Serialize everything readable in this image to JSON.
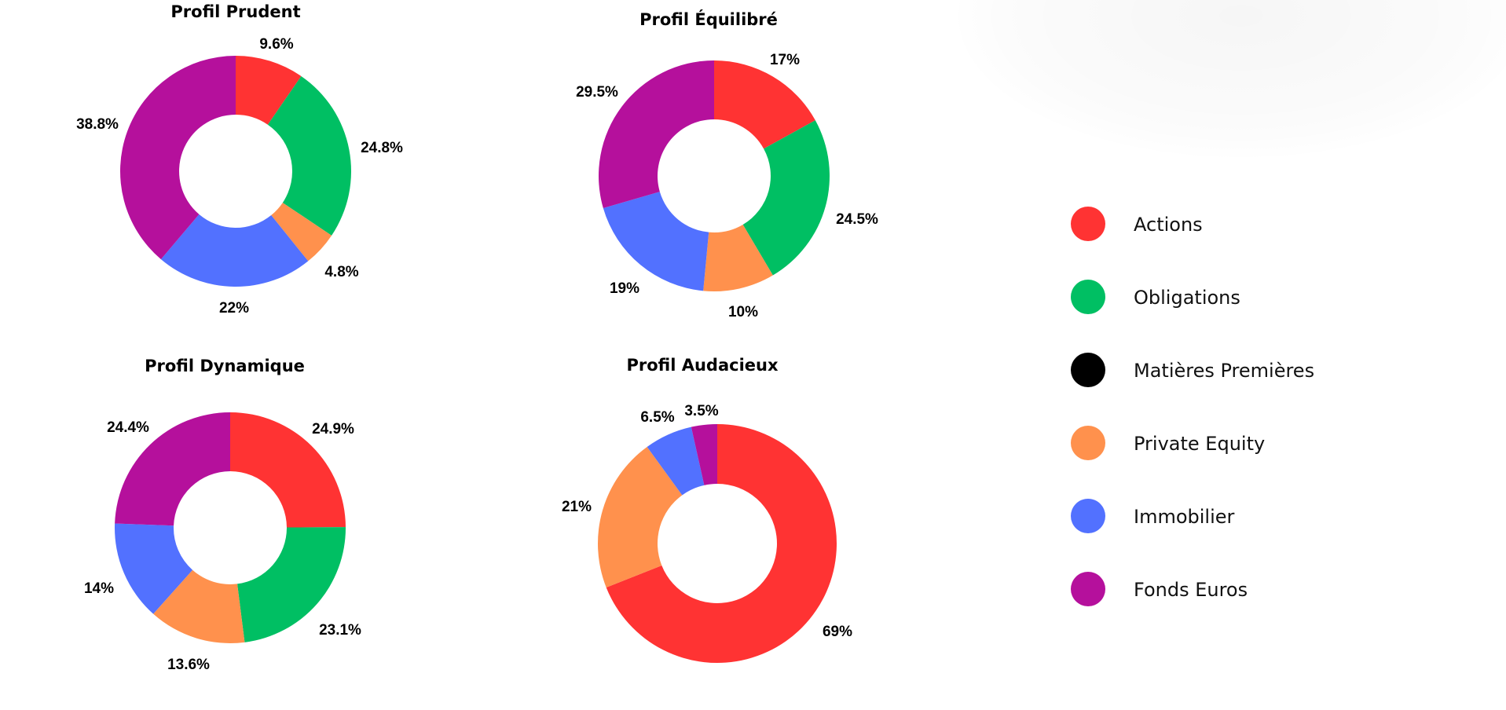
{
  "chart_data": [
    {
      "type": "pie",
      "title": "Profil Prudent",
      "slices": [
        {
          "category": "Actions",
          "value": 9.6,
          "label": "9.6%"
        },
        {
          "category": "Obligations",
          "value": 24.8,
          "label": "24.8%"
        },
        {
          "category": "Private Equity",
          "value": 4.8,
          "label": "4.8%"
        },
        {
          "category": "Immobilier",
          "value": 22,
          "label": "22%"
        },
        {
          "category": "Fonds Euros",
          "value": 38.8,
          "label": "38.8%"
        }
      ]
    },
    {
      "type": "pie",
      "title": "Profil Équilibré",
      "slices": [
        {
          "category": "Actions",
          "value": 17,
          "label": "17%"
        },
        {
          "category": "Obligations",
          "value": 24.5,
          "label": "24.5%"
        },
        {
          "category": "Private Equity",
          "value": 10,
          "label": "10%"
        },
        {
          "category": "Immobilier",
          "value": 19,
          "label": "19%"
        },
        {
          "category": "Fonds Euros",
          "value": 29.5,
          "label": "29.5%"
        }
      ]
    },
    {
      "type": "pie",
      "title": "Profil Dynamique",
      "slices": [
        {
          "category": "Actions",
          "value": 24.9,
          "label": "24.9%"
        },
        {
          "category": "Obligations",
          "value": 23.1,
          "label": "23.1%"
        },
        {
          "category": "Private Equity",
          "value": 13.6,
          "label": "13.6%"
        },
        {
          "category": "Immobilier",
          "value": 14,
          "label": "14%"
        },
        {
          "category": "Fonds Euros",
          "value": 24.4,
          "label": "24.4%"
        }
      ]
    },
    {
      "type": "pie",
      "title": "Profil Audacieux",
      "slices": [
        {
          "category": "Actions",
          "value": 69,
          "label": "69%"
        },
        {
          "category": "Private Equity",
          "value": 21,
          "label": "21%"
        },
        {
          "category": "Immobilier",
          "value": 6.5,
          "label": "6.5%"
        },
        {
          "category": "Fonds Euros",
          "value": 3.5,
          "label": "3.5%"
        }
      ]
    }
  ],
  "legend": [
    {
      "label": "Actions",
      "color": "#ff3333"
    },
    {
      "label": "Obligations",
      "color": "#00bf63"
    },
    {
      "label": "Matières Premières",
      "color": "#000000"
    },
    {
      "label": "Private Equity",
      "color": "#ff914d"
    },
    {
      "label": "Immobilier",
      "color": "#5271ff"
    },
    {
      "label": "Fonds Euros",
      "color": "#b5109c"
    }
  ],
  "colors": {
    "Actions": "#ff3333",
    "Obligations": "#00bf63",
    "Matières Premières": "#000000",
    "Private Equity": "#ff914d",
    "Immobilier": "#5271ff",
    "Fonds Euros": "#b5109c"
  }
}
